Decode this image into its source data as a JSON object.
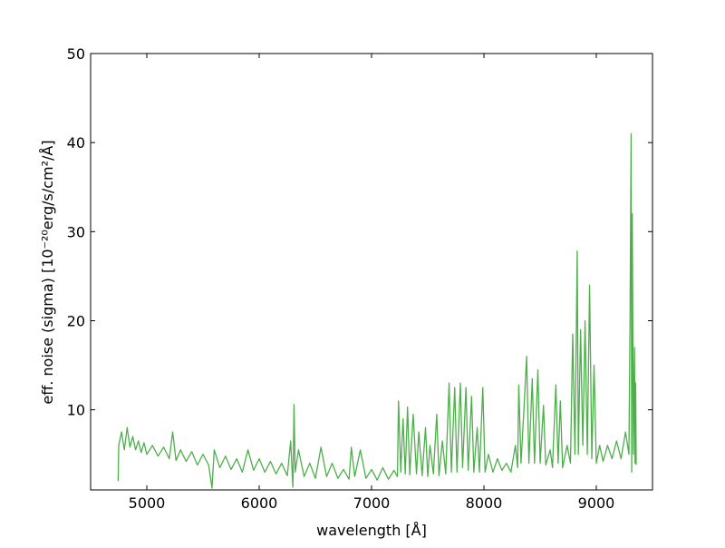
{
  "chart_data": {
    "type": "line",
    "xlabel": "wavelength [Å]",
    "ylabel": "eff. noise  (sigma)  [10⁻²⁰erg/s/cm²/Å]",
    "xlim": [
      4500,
      9500
    ],
    "ylim": [
      1,
      50
    ],
    "xticks": [
      5000,
      6000,
      7000,
      8000,
      9000
    ],
    "yticks": [
      10,
      20,
      30,
      40,
      50
    ],
    "series": [
      {
        "color": "#4daf4a",
        "x": [
          4745,
          4750,
          4775,
          4800,
          4825,
          4850,
          4875,
          4900,
          4925,
          4950,
          4975,
          5000,
          5050,
          5100,
          5150,
          5200,
          5230,
          5260,
          5300,
          5350,
          5400,
          5450,
          5500,
          5550,
          5580,
          5600,
          5650,
          5700,
          5750,
          5800,
          5850,
          5900,
          5950,
          6000,
          6050,
          6100,
          6150,
          6200,
          6250,
          6280,
          6300,
          6310,
          6320,
          6350,
          6400,
          6450,
          6500,
          6550,
          6600,
          6650,
          6700,
          6750,
          6800,
          6820,
          6850,
          6900,
          6950,
          7000,
          7050,
          7100,
          7150,
          7200,
          7230,
          7240,
          7260,
          7280,
          7300,
          7320,
          7340,
          7370,
          7400,
          7420,
          7450,
          7480,
          7500,
          7520,
          7550,
          7580,
          7600,
          7630,
          7660,
          7690,
          7710,
          7740,
          7760,
          7790,
          7810,
          7840,
          7860,
          7890,
          7910,
          7940,
          7960,
          7990,
          8010,
          8040,
          8080,
          8120,
          8160,
          8200,
          8240,
          8280,
          8300,
          8310,
          8330,
          8360,
          8380,
          8400,
          8430,
          8450,
          8480,
          8500,
          8530,
          8550,
          8590,
          8610,
          8640,
          8660,
          8680,
          8700,
          8740,
          8770,
          8790,
          8810,
          8830,
          8840,
          8860,
          8880,
          8900,
          8920,
          8940,
          8960,
          8980,
          9000,
          9030,
          9060,
          9100,
          9140,
          9180,
          9220,
          9260,
          9290,
          9300,
          9310,
          9315,
          9320,
          9330,
          9340,
          9345,
          9350,
          9355
        ],
        "values": [
          2,
          6,
          7.5,
          5.5,
          8,
          5.8,
          7,
          5.5,
          6.5,
          5.2,
          6.3,
          5,
          6,
          4.8,
          5.8,
          4.5,
          7.5,
          4.3,
          5.5,
          4.2,
          5.3,
          3.8,
          5,
          3.8,
          1.2,
          5.5,
          3.5,
          4.8,
          3.3,
          4.5,
          3,
          5.5,
          3.2,
          4.5,
          3,
          4.2,
          2.8,
          4,
          2.6,
          6.5,
          1.3,
          10.6,
          3,
          5.5,
          2.5,
          4,
          2.3,
          5.8,
          2.5,
          4,
          2.3,
          3.3,
          2.2,
          5.8,
          2.5,
          5.5,
          2.3,
          3.3,
          2.1,
          3.5,
          2.2,
          3.2,
          2.5,
          11,
          3,
          9,
          2.8,
          10.3,
          2.7,
          9.5,
          2.8,
          7.5,
          2.6,
          8,
          2.5,
          6,
          2.8,
          9.5,
          2.6,
          6.5,
          2.8,
          13,
          3,
          12.5,
          3,
          13,
          3.5,
          12.5,
          3.2,
          11.5,
          3,
          8,
          3,
          12.5,
          3,
          5,
          3,
          4.5,
          3.2,
          4,
          3,
          6,
          3.5,
          12.8,
          4,
          11,
          16,
          4,
          13.5,
          4,
          14.5,
          4,
          10.5,
          3.8,
          5.5,
          3.5,
          12.8,
          4,
          11,
          3.5,
          6,
          4,
          18.5,
          5,
          27.8,
          5,
          19,
          6,
          20,
          5,
          24,
          4.5,
          15,
          4,
          6,
          4.2,
          6,
          4.5,
          6.5,
          4.5,
          7.5,
          5,
          20,
          41,
          3,
          32,
          5,
          17,
          4,
          13,
          3.8
        ]
      }
    ]
  }
}
